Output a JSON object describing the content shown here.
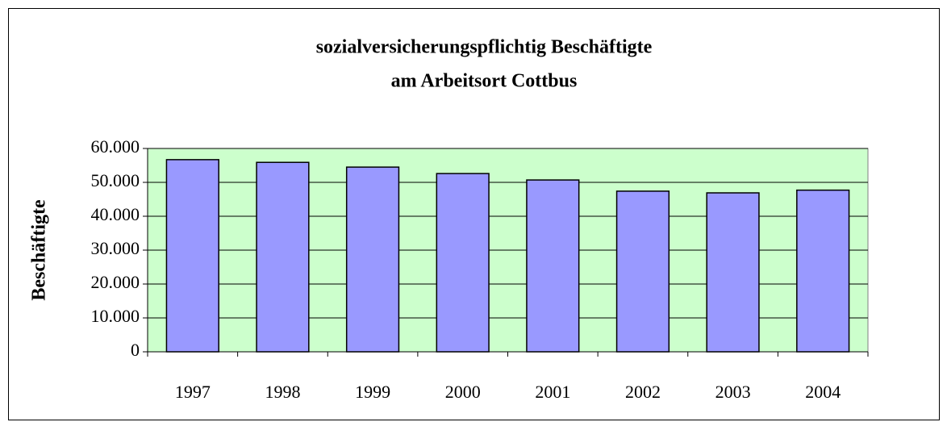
{
  "chart_data": {
    "type": "bar",
    "title": [
      "sozialversicherungspflichtig Beschäftigte",
      "am Arbeitsort Cottbus"
    ],
    "y_label": "Beschäftigte",
    "categories": [
      "1997",
      "1998",
      "1999",
      "2000",
      "2001",
      "2002",
      "2003",
      "2004"
    ],
    "values": [
      56700,
      55900,
      54500,
      52600,
      50700,
      47400,
      46900,
      47700
    ],
    "color": "#9999ff",
    "background": "#ccffcc",
    "ylim": [
      0,
      60000
    ],
    "yticks": [
      0,
      {
        "value": 10000,
        "label": "10.000"
      },
      {
        "value": 20000,
        "label": "20.000"
      },
      {
        "value": 30000,
        "label": "30.000"
      },
      {
        "value": 40000,
        "label": "40.000"
      },
      {
        "value": 50000,
        "label": "50.000"
      },
      {
        "value": 60000,
        "label": "60.000"
      }
    ],
    "grid": true
  }
}
